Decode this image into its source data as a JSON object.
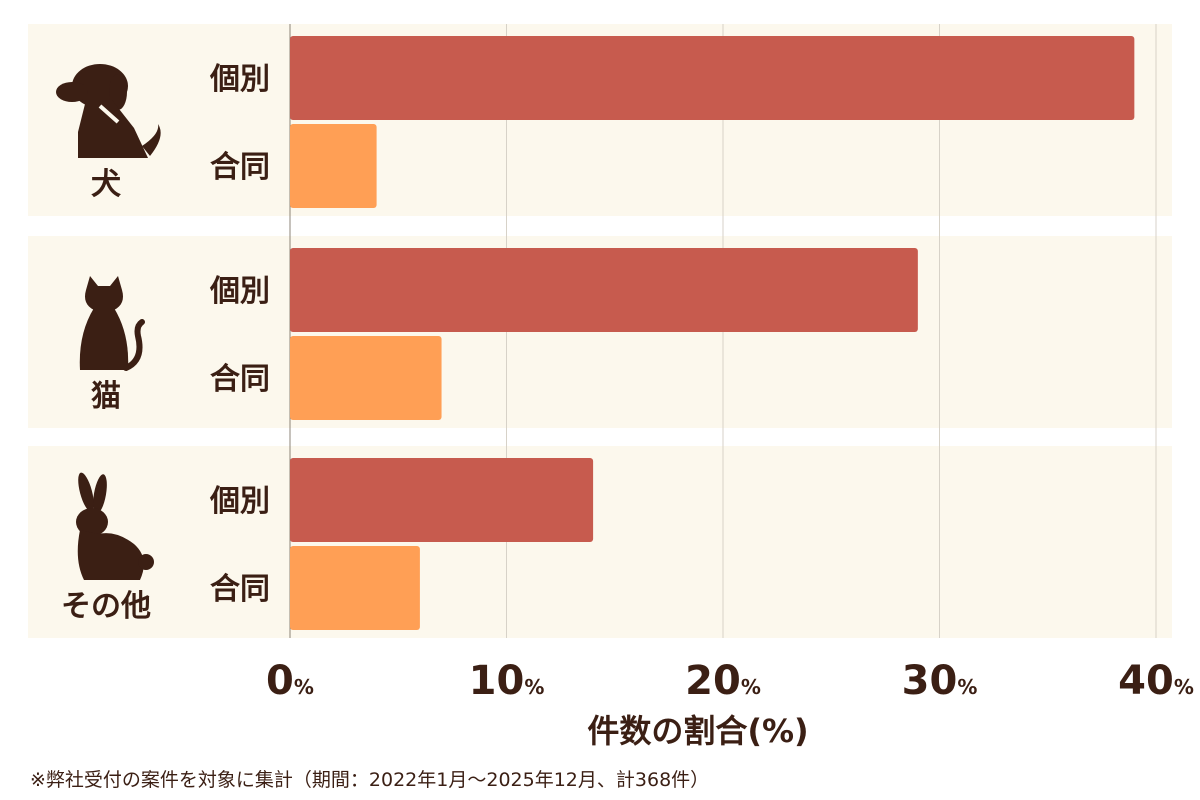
{
  "chart_data": {
    "type": "bar",
    "orientation": "horizontal",
    "groups": [
      {
        "label": "犬",
        "icon": "dog-icon"
      },
      {
        "label": "猫",
        "icon": "cat-icon"
      },
      {
        "label": "その他",
        "icon": "rabbit-icon"
      }
    ],
    "series": [
      {
        "name": "個別",
        "color": "#c75b4e",
        "values": [
          39,
          29,
          14
        ]
      },
      {
        "name": "合同",
        "color": "#ff9f55",
        "values": [
          4,
          7,
          6
        ]
      }
    ],
    "x_ticks": [
      0,
      10,
      20,
      30,
      40
    ],
    "tick_unit": "%",
    "xlim": [
      0,
      40
    ],
    "xlabel": "件数の割合(%)",
    "grid": true,
    "band_color": "#fcf8ed",
    "text_color": "#3b1f14"
  },
  "footnote": "※弊社受付の案件を対象に集計（期間：2022年1月〜2025年12月、計368件）"
}
